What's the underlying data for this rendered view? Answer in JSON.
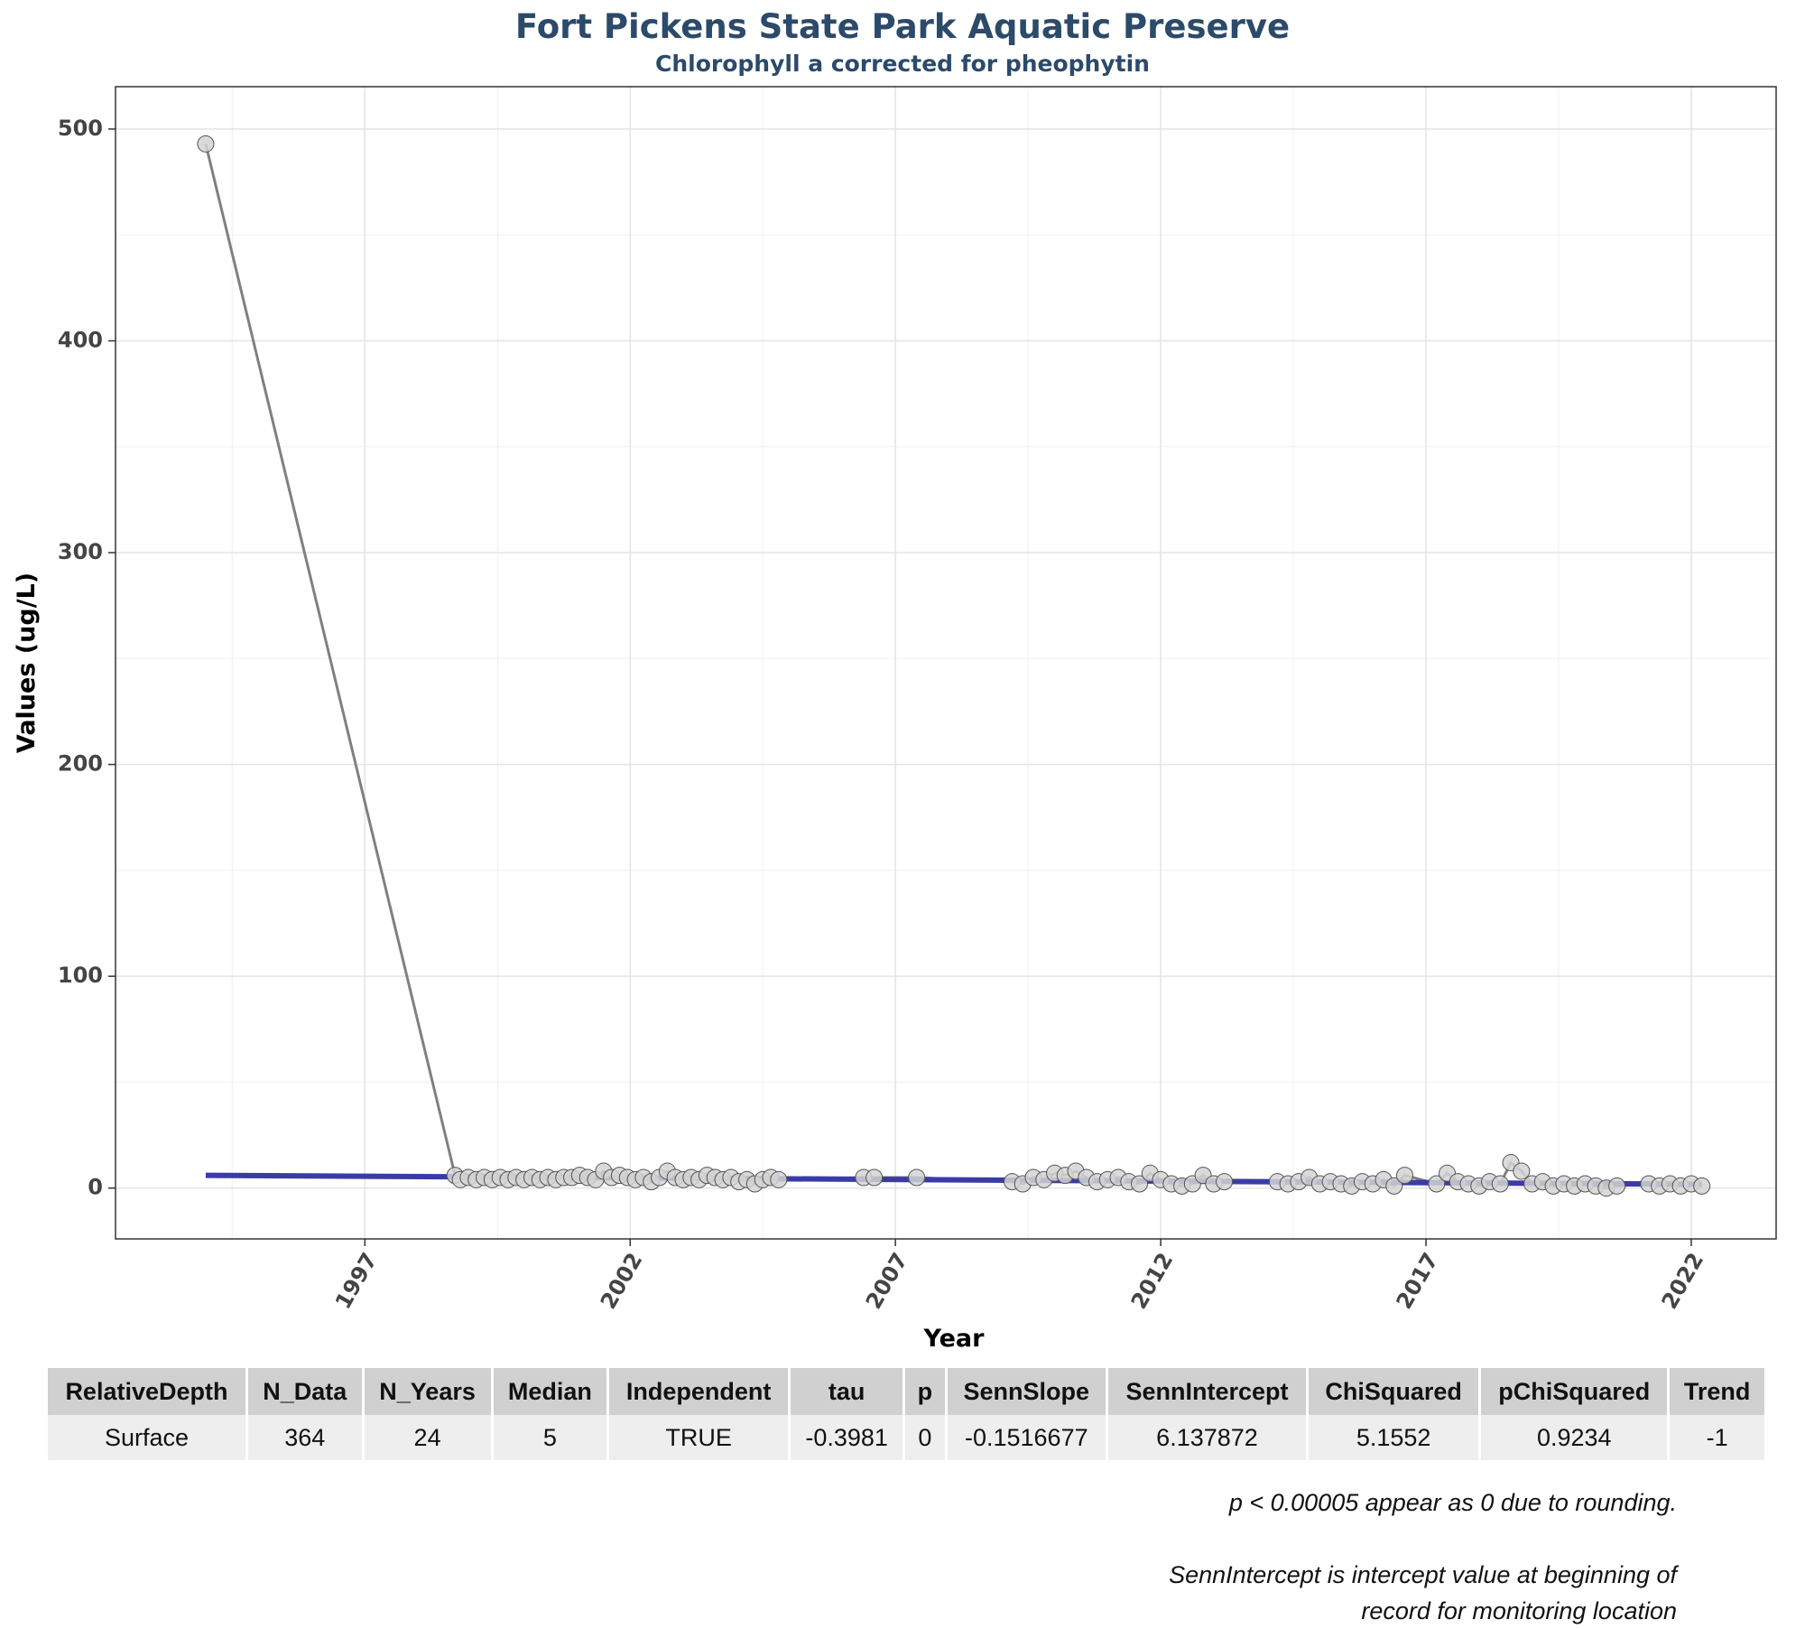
{
  "chart_data": {
    "type": "scatter",
    "title": "Fort Pickens State Park Aquatic Preserve",
    "subtitle": "Chlorophyll a corrected for pheophytin",
    "xlabel": "Year",
    "ylabel": "Values (ug/L)",
    "xlim": [
      1992.3,
      2023.6
    ],
    "ylim": [
      -24,
      520
    ],
    "x_ticks": [
      1997,
      2002,
      2007,
      2012,
      2017,
      2022
    ],
    "y_ticks": [
      0,
      100,
      200,
      300,
      400,
      500
    ],
    "grid": true,
    "colors": {
      "points_fill": "#d3d3d3",
      "points_stroke": "#555555",
      "connecting_line": "#808080",
      "trend_line": "#3b3ba8"
    },
    "trend_line": {
      "x": [
        1994.0,
        2022.2
      ],
      "y": [
        6.0,
        1.8
      ]
    },
    "series": [
      {
        "x": [
          1994.0,
          1998.7,
          1998.8,
          1998.95,
          1999.1,
          1999.25,
          1999.4,
          1999.55,
          1999.7,
          1999.85,
          2000.0,
          2000.15,
          2000.3,
          2000.45,
          2000.6,
          2000.75,
          2000.9,
          2001.05,
          2001.2,
          2001.35,
          2001.5,
          2001.65,
          2001.8,
          2001.95,
          2002.1,
          2002.25,
          2002.4,
          2002.55,
          2002.7,
          2002.85,
          2003.0,
          2003.15,
          2003.3,
          2003.45,
          2003.6,
          2003.75,
          2003.9,
          2004.05,
          2004.2,
          2004.35,
          2004.5,
          2004.65,
          2004.8,
          2006.4,
          2006.6,
          2007.4,
          2009.2,
          2009.4,
          2009.6,
          2009.8,
          2010.0,
          2010.2,
          2010.4,
          2010.6,
          2010.8,
          2011.0,
          2011.2,
          2011.4,
          2011.6,
          2011.8,
          2012.0,
          2012.2,
          2012.4,
          2012.6,
          2012.8,
          2013.0,
          2013.2,
          2014.2,
          2014.4,
          2014.6,
          2014.8,
          2015.0,
          2015.2,
          2015.4,
          2015.6,
          2015.8,
          2016.0,
          2016.2,
          2016.4,
          2016.6,
          2017.2,
          2017.4,
          2017.6,
          2017.8,
          2018.0,
          2018.2,
          2018.4,
          2018.6,
          2018.8,
          2019.0,
          2019.2,
          2019.4,
          2019.6,
          2019.8,
          2020.0,
          2020.2,
          2020.4,
          2020.6,
          2021.2,
          2021.4,
          2021.6,
          2021.8,
          2022.0,
          2022.2
        ],
        "y": [
          493,
          6,
          4,
          5,
          4,
          5,
          4,
          5,
          4,
          5,
          4,
          5,
          4,
          5,
          4,
          5,
          5,
          6,
          5,
          4,
          8,
          5,
          6,
          5,
          4,
          5,
          3,
          5,
          8,
          5,
          4,
          5,
          4,
          6,
          5,
          4,
          5,
          3,
          4,
          2,
          4,
          5,
          4,
          5,
          5,
          5,
          3,
          2,
          5,
          4,
          7,
          6,
          8,
          5,
          3,
          4,
          5,
          3,
          2,
          7,
          4,
          2,
          1,
          2,
          6,
          2,
          3,
          3,
          2,
          3,
          5,
          2,
          3,
          2,
          1,
          3,
          2,
          4,
          1,
          6,
          2,
          7,
          3,
          2,
          1,
          3,
          2,
          12,
          8,
          2,
          3,
          1,
          2,
          1,
          2,
          1,
          0,
          1,
          2,
          1,
          2,
          1,
          2,
          1
        ]
      }
    ]
  },
  "table": {
    "headers": [
      "RelativeDepth",
      "N_Data",
      "N_Years",
      "Median",
      "Independent",
      "tau",
      "p",
      "SennSlope",
      "SennIntercept",
      "ChiSquared",
      "pChiSquared",
      "Trend"
    ],
    "rows": [
      [
        "Surface",
        "364",
        "24",
        "5",
        "TRUE",
        "-0.3981",
        "0",
        "-0.1516677",
        "6.137872",
        "5.1552",
        "0.9234",
        "-1"
      ]
    ]
  },
  "footnotes": {
    "note1": "p < 0.00005 appear as 0 due to rounding.",
    "note2": "SennIntercept is intercept value at beginning of record for monitoring location"
  }
}
